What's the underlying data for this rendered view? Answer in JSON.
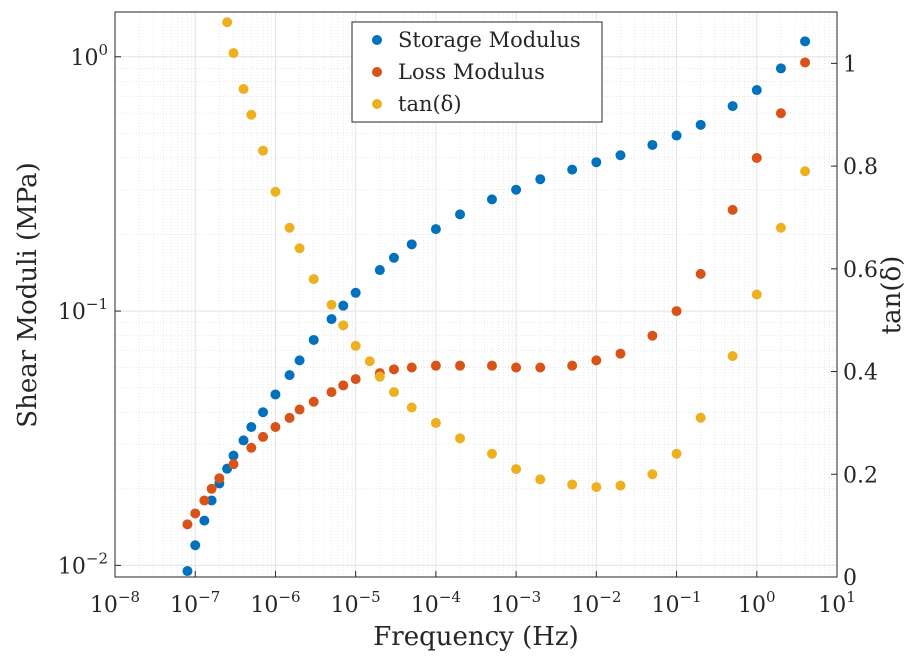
{
  "chart_data": {
    "type": "scatter",
    "title": "",
    "xlabel": "Frequency (Hz)",
    "ylabel": "Shear Moduli (MPa)",
    "y2label": "tan(δ)",
    "xscale": "log",
    "yscale": "log",
    "xlim": [
      1e-08,
      10
    ],
    "ylim": [
      0.009,
      1.5
    ],
    "y2lim": [
      0,
      1.1
    ],
    "grid": true,
    "legend_position": "top-center",
    "x_ticks": [
      {
        "value": 1e-08,
        "base": "10",
        "exp": "−8"
      },
      {
        "value": 1e-07,
        "base": "10",
        "exp": "−7"
      },
      {
        "value": 1e-06,
        "base": "10",
        "exp": "−6"
      },
      {
        "value": 1e-05,
        "base": "10",
        "exp": "−5"
      },
      {
        "value": 0.0001,
        "base": "10",
        "exp": "−4"
      },
      {
        "value": 0.001,
        "base": "10",
        "exp": "−3"
      },
      {
        "value": 0.01,
        "base": "10",
        "exp": "−2"
      },
      {
        "value": 0.1,
        "base": "10",
        "exp": "−1"
      },
      {
        "value": 1,
        "base": "10",
        "exp": "0"
      },
      {
        "value": 10,
        "base": "10",
        "exp": "1"
      }
    ],
    "y_ticks": [
      {
        "value": 0.01,
        "base": "10",
        "exp": "−2"
      },
      {
        "value": 0.1,
        "base": "10",
        "exp": "−1"
      },
      {
        "value": 1,
        "base": "10",
        "exp": "0"
      }
    ],
    "y2_ticks": [
      {
        "value": 0,
        "label": "0"
      },
      {
        "value": 0.2,
        "label": "0.2"
      },
      {
        "value": 0.4,
        "label": "0.4"
      },
      {
        "value": 0.6,
        "label": "0.6"
      },
      {
        "value": 0.8,
        "label": "0.8"
      },
      {
        "value": 1,
        "label": "1"
      }
    ],
    "series": [
      {
        "name": "Storage Modulus",
        "axis": "left",
        "color": "#0072BD",
        "points": [
          [
            8e-08,
            0.0095
          ],
          [
            1e-07,
            0.012
          ],
          [
            1.3e-07,
            0.015
          ],
          [
            1.6e-07,
            0.018
          ],
          [
            2e-07,
            0.021
          ],
          [
            2.5e-07,
            0.024
          ],
          [
            3e-07,
            0.027
          ],
          [
            4e-07,
            0.031
          ],
          [
            5e-07,
            0.035
          ],
          [
            7e-07,
            0.04
          ],
          [
            1e-06,
            0.047
          ],
          [
            1.5e-06,
            0.056
          ],
          [
            2e-06,
            0.064
          ],
          [
            3e-06,
            0.077
          ],
          [
            5e-06,
            0.093
          ],
          [
            7e-06,
            0.105
          ],
          [
            1e-05,
            0.118
          ],
          [
            2e-05,
            0.145
          ],
          [
            3e-05,
            0.162
          ],
          [
            5e-05,
            0.183
          ],
          [
            0.0001,
            0.21
          ],
          [
            0.0002,
            0.24
          ],
          [
            0.0005,
            0.275
          ],
          [
            0.001,
            0.3
          ],
          [
            0.002,
            0.33
          ],
          [
            0.005,
            0.36
          ],
          [
            0.01,
            0.385
          ],
          [
            0.02,
            0.41
          ],
          [
            0.05,
            0.45
          ],
          [
            0.1,
            0.49
          ],
          [
            0.2,
            0.54
          ],
          [
            0.5,
            0.64
          ],
          [
            1,
            0.74
          ],
          [
            2,
            0.9
          ],
          [
            4,
            1.15
          ]
        ]
      },
      {
        "name": "Loss Modulus",
        "axis": "left",
        "color": "#D95319",
        "points": [
          [
            8e-08,
            0.0145
          ],
          [
            1e-07,
            0.016
          ],
          [
            1.3e-07,
            0.018
          ],
          [
            1.6e-07,
            0.02
          ],
          [
            2e-07,
            0.022
          ],
          [
            3e-07,
            0.025
          ],
          [
            5e-07,
            0.029
          ],
          [
            7e-07,
            0.032
          ],
          [
            1e-06,
            0.035
          ],
          [
            1.5e-06,
            0.038
          ],
          [
            2e-06,
            0.041
          ],
          [
            3e-06,
            0.044
          ],
          [
            5e-06,
            0.048
          ],
          [
            7e-06,
            0.051
          ],
          [
            1e-05,
            0.054
          ],
          [
            2e-05,
            0.057
          ],
          [
            3e-05,
            0.059
          ],
          [
            5e-05,
            0.06
          ],
          [
            0.0001,
            0.061
          ],
          [
            0.0002,
            0.061
          ],
          [
            0.0005,
            0.061
          ],
          [
            0.001,
            0.06
          ],
          [
            0.002,
            0.06
          ],
          [
            0.005,
            0.061
          ],
          [
            0.01,
            0.064
          ],
          [
            0.02,
            0.068
          ],
          [
            0.05,
            0.08
          ],
          [
            0.1,
            0.1
          ],
          [
            0.2,
            0.14
          ],
          [
            0.5,
            0.25
          ],
          [
            1,
            0.4
          ],
          [
            2,
            0.6
          ],
          [
            4,
            0.95
          ]
        ]
      },
      {
        "name": "tan(δ)",
        "axis": "right",
        "color": "#EDB120",
        "points": [
          [
            2.5e-07,
            1.08
          ],
          [
            3e-07,
            1.02
          ],
          [
            4e-07,
            0.95
          ],
          [
            5e-07,
            0.9
          ],
          [
            7e-07,
            0.83
          ],
          [
            1e-06,
            0.75
          ],
          [
            1.5e-06,
            0.68
          ],
          [
            2e-06,
            0.64
          ],
          [
            3e-06,
            0.58
          ],
          [
            5e-06,
            0.53
          ],
          [
            7e-06,
            0.49
          ],
          [
            1e-05,
            0.45
          ],
          [
            1.5e-05,
            0.42
          ],
          [
            2e-05,
            0.39
          ],
          [
            3e-05,
            0.36
          ],
          [
            5e-05,
            0.33
          ],
          [
            0.0001,
            0.3
          ],
          [
            0.0002,
            0.27
          ],
          [
            0.0005,
            0.24
          ],
          [
            0.001,
            0.21
          ],
          [
            0.002,
            0.19
          ],
          [
            0.005,
            0.18
          ],
          [
            0.01,
            0.175
          ],
          [
            0.02,
            0.178
          ],
          [
            0.05,
            0.2
          ],
          [
            0.1,
            0.24
          ],
          [
            0.2,
            0.31
          ],
          [
            0.5,
            0.43
          ],
          [
            1,
            0.55
          ],
          [
            2,
            0.68
          ],
          [
            4,
            0.79
          ]
        ]
      }
    ]
  }
}
